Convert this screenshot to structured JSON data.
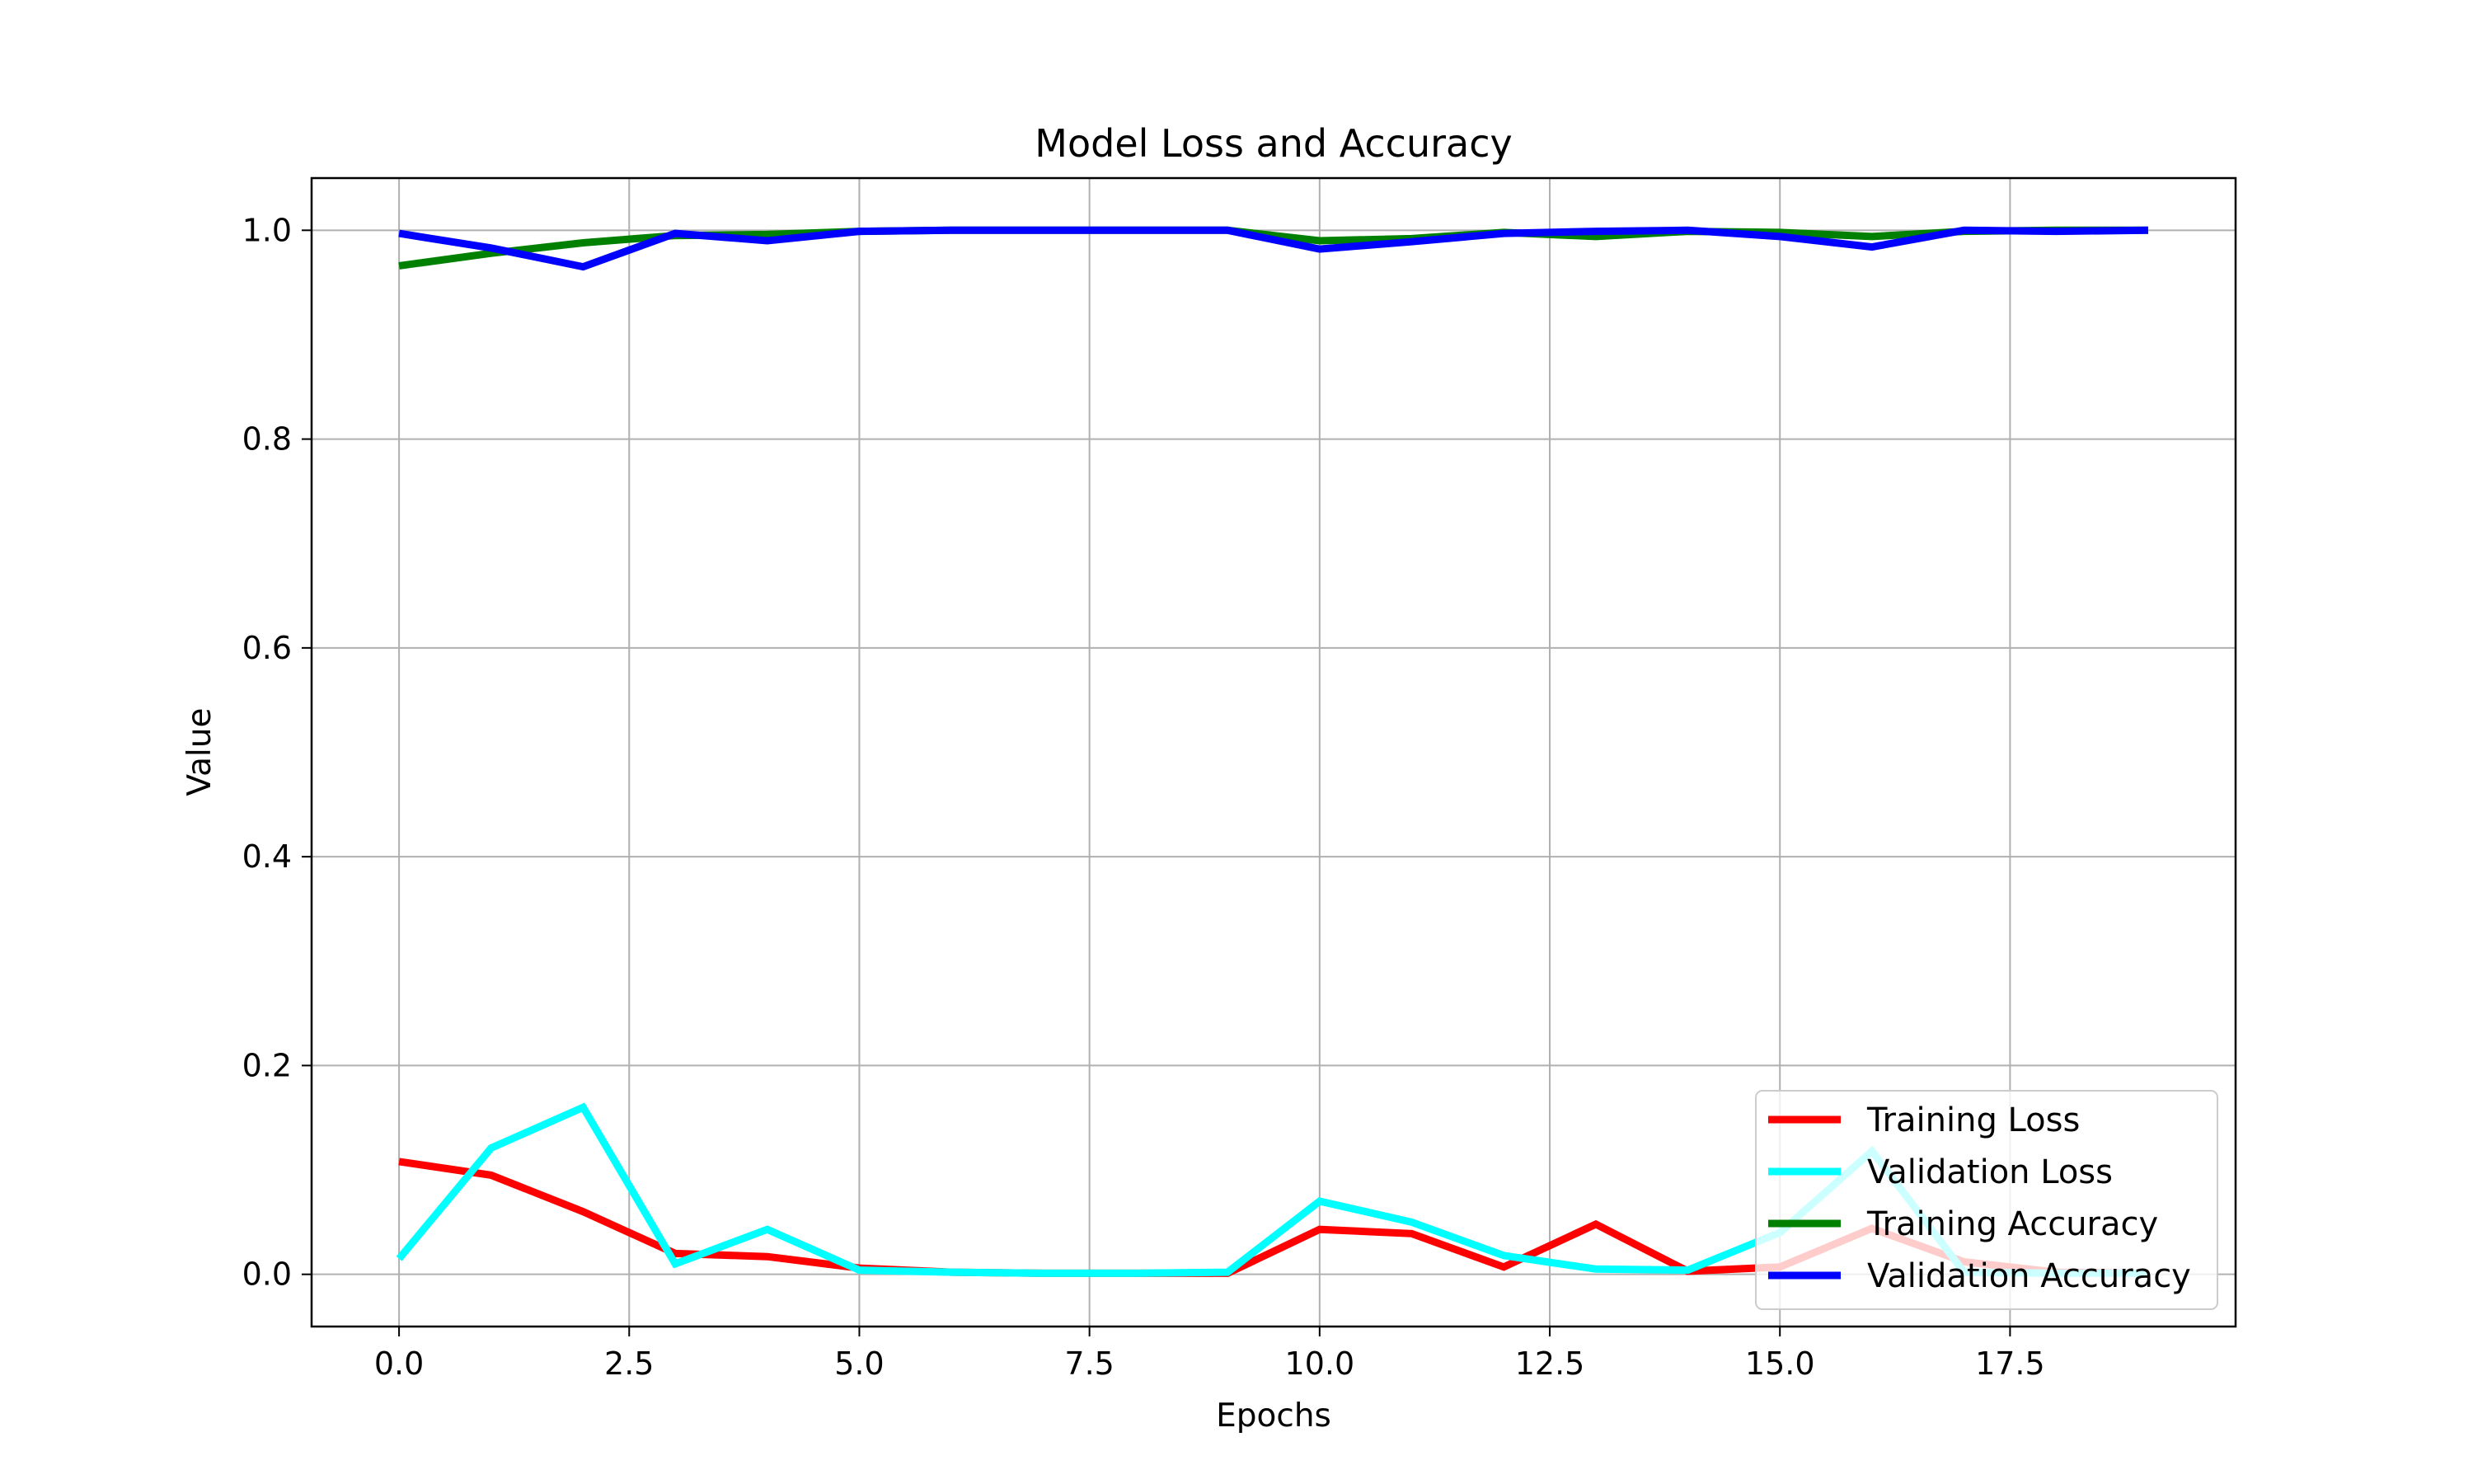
{
  "chart_data": {
    "type": "line",
    "title": "Model Loss and Accuracy",
    "xlabel": "Epochs",
    "ylabel": "Value",
    "xlim": [
      -0.95,
      19.95
    ],
    "ylim": [
      -0.05,
      1.05
    ],
    "xticks": [
      0.0,
      2.5,
      5.0,
      7.5,
      10.0,
      12.5,
      15.0,
      17.5
    ],
    "xtick_labels": [
      "0.0",
      "2.5",
      "5.0",
      "7.5",
      "10.0",
      "12.5",
      "15.0",
      "17.5"
    ],
    "yticks": [
      0.0,
      0.2,
      0.4,
      0.6,
      0.8,
      1.0
    ],
    "ytick_labels": [
      "0.0",
      "0.2",
      "0.4",
      "0.6",
      "0.8",
      "1.0"
    ],
    "grid": true,
    "legend_position": "lower-right",
    "x": [
      0,
      1,
      2,
      3,
      4,
      5,
      6,
      7,
      8,
      9,
      10,
      11,
      12,
      13,
      14,
      15,
      16,
      17,
      18,
      19
    ],
    "series": [
      {
        "name": "Training Loss",
        "color": "#ff0000",
        "values": [
          0.108,
          0.095,
          0.06,
          0.02,
          0.017,
          0.006,
          0.002,
          0.001,
          0.001,
          0.001,
          0.043,
          0.039,
          0.007,
          0.048,
          0.003,
          0.007,
          0.044,
          0.012,
          0.002,
          0.001
        ]
      },
      {
        "name": "Validation Loss",
        "color": "#00ffff",
        "values": [
          0.015,
          0.121,
          0.16,
          0.01,
          0.043,
          0.004,
          0.002,
          0.001,
          0.001,
          0.002,
          0.07,
          0.05,
          0.018,
          0.005,
          0.004,
          0.04,
          0.118,
          0.002,
          0.001,
          0.001
        ]
      },
      {
        "name": "Training Accuracy",
        "color": "#008000",
        "values": [
          0.966,
          0.978,
          0.988,
          0.995,
          0.996,
          0.999,
          1.0,
          1.0,
          1.0,
          1.0,
          0.99,
          0.992,
          0.998,
          0.994,
          0.999,
          0.998,
          0.994,
          0.999,
          1.0,
          1.0
        ]
      },
      {
        "name": "Validation Accuracy",
        "color": "#0000ff",
        "values": [
          0.997,
          0.983,
          0.965,
          0.997,
          0.99,
          0.999,
          1.0,
          1.0,
          1.0,
          1.0,
          0.982,
          0.989,
          0.997,
          0.999,
          1.0,
          0.994,
          0.984,
          1.0,
          0.999,
          1.0
        ]
      }
    ]
  }
}
